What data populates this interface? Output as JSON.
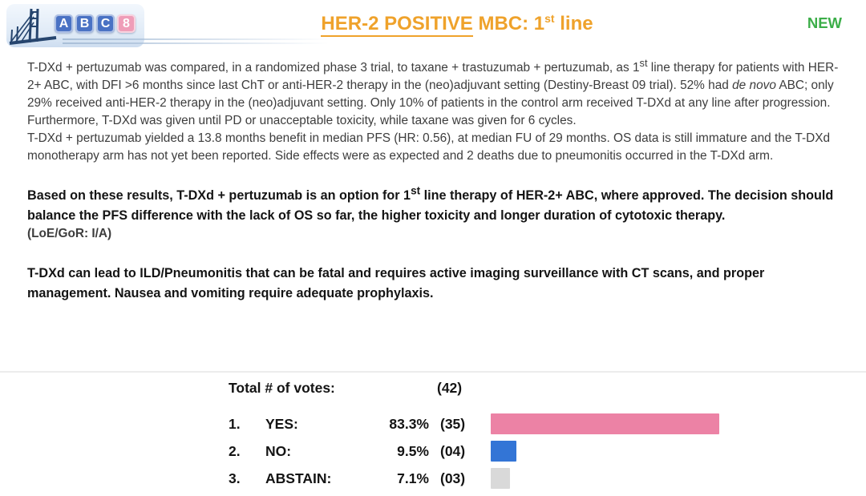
{
  "colors": {
    "title_orange": "#EFA22B",
    "new_green": "#3CAE49",
    "loe_blue": "#2E75B6",
    "bar_yes_pink": "#EC82A5",
    "bar_no_blue": "#3375D6",
    "bar_abstain_gray": "#D9D9D9"
  },
  "logo": {
    "tiles": [
      {
        "letter": "A"
      },
      {
        "letter": "B"
      },
      {
        "letter": "C"
      },
      {
        "letter": "8"
      }
    ]
  },
  "header": {
    "title_underlined": "HER-2 POSITIVE",
    "title_mid": " MBC: 1",
    "title_sup": "st",
    "title_tail": " line",
    "badge": "NEW"
  },
  "body": {
    "para1": {
      "t1": "T-DXd + pertuzumab was compared, in a randomized phase 3 trial, to taxane + trastuzumab + pertuzumab, as 1",
      "sup1": "st",
      "t2": " line therapy  for patients with HER-2+ ABC, with DFI >6 months since last ChT or anti-HER-2 therapy in the (neo)adjuvant setting (Destiny-Breast 09 trial). 52% had ",
      "italic": "de novo",
      "t3": " ABC; only 29% received anti-HER-2 therapy in the (neo)adjuvant setting. Only 10% of patients in the control arm received T-DXd at any line after progression. Furthermore, T-DXd was given until PD or unacceptable toxicity, while taxane was given for 6 cycles."
    },
    "para2": "T-DXd + pertuzumab yielded a 13.8 months benefit in median PFS (HR: 0.56), at median FU of 29 months. OS data is still immature and the T-DXd monotherapy arm has not yet been reported. Side effects were as expected and 2 deaths due to pneumonitis occurred in the T-DXd arm.",
    "recommendation": {
      "t1": "Based on these results, T-DXd + pertuzumab is an option for 1",
      "sup1": "st",
      "t2": " line therapy of HER-2+ ABC, where approved. The decision should balance the PFS difference with the lack of OS so far, the higher toxicity and longer duration of cytotoxic therapy."
    },
    "loe": "(LoE/GoR: I/A)",
    "warning": "T-DXd can lead to ILD/Pneumonitis that can be fatal and requires active imaging surveillance with CT scans, and proper management. Nausea and vomiting require adequate prophylaxis."
  },
  "voting": {
    "total_label": "Total # of votes:",
    "total_value": "(42)",
    "rows": [
      {
        "num": "1.",
        "label": "YES:",
        "pct": "83.3%",
        "count": "(35)",
        "pct_value": 83.3,
        "color": "#EC82A5"
      },
      {
        "num": "2.",
        "label": "NO:",
        "pct": "9.5%",
        "count": "(04)",
        "pct_value": 9.5,
        "color": "#3375D6"
      },
      {
        "num": "3.",
        "label": "ABSTAIN:",
        "pct": "7.1%",
        "count": "(03)",
        "pct_value": 7.1,
        "color": "#D9D9D9"
      }
    ]
  },
  "chart_data": {
    "type": "bar",
    "orientation": "horizontal",
    "title": "Total # of votes: (42)",
    "categories": [
      "YES",
      "NO",
      "ABSTAIN"
    ],
    "values": [
      83.3,
      9.5,
      7.1
    ],
    "counts": [
      35,
      4,
      3
    ],
    "total_votes": 42,
    "xlim": [
      0,
      100
    ],
    "bar_colors": [
      "#EC82A5",
      "#3375D6",
      "#D9D9D9"
    ]
  }
}
